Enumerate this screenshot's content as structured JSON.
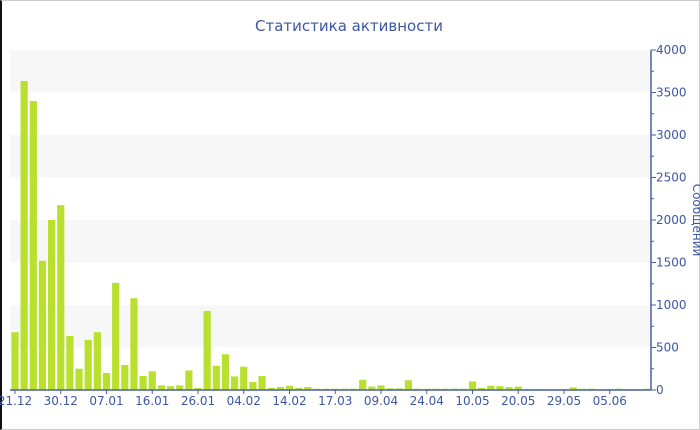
{
  "chart_data": {
    "type": "bar",
    "title": "Статистика активности",
    "ylabel": "Сообщений",
    "xlabel": "",
    "ylim": [
      0,
      4000
    ],
    "yticks": [
      0,
      500,
      1000,
      1500,
      2000,
      2500,
      3000,
      3500,
      4000
    ],
    "y_axis_side": "right",
    "grid": "alternating horizontal bands",
    "colors": {
      "bar": "#b9e02f",
      "text": "#3d57a3",
      "band": "#f7f7f7"
    },
    "tick_labels": [
      "21.12",
      "30.12",
      "07.01",
      "16.01",
      "26.01",
      "04.02",
      "14.02",
      "17.03",
      "09.04",
      "24.04",
      "10.05",
      "20.05",
      "29.05",
      "05.06"
    ],
    "tick_every": 5,
    "values": [
      680,
      3635,
      3400,
      1520,
      2000,
      2175,
      635,
      250,
      590,
      680,
      200,
      1260,
      295,
      1080,
      165,
      220,
      55,
      45,
      55,
      230,
      25,
      930,
      285,
      420,
      160,
      275,
      95,
      165,
      25,
      35,
      50,
      25,
      35,
      15,
      15,
      15,
      15,
      15,
      120,
      40,
      55,
      20,
      20,
      115,
      15,
      15,
      15,
      15,
      15,
      15,
      100,
      25,
      50,
      45,
      35,
      40,
      10,
      10,
      10,
      10,
      10,
      30,
      15,
      15,
      10,
      10,
      15,
      10,
      10,
      15
    ]
  }
}
